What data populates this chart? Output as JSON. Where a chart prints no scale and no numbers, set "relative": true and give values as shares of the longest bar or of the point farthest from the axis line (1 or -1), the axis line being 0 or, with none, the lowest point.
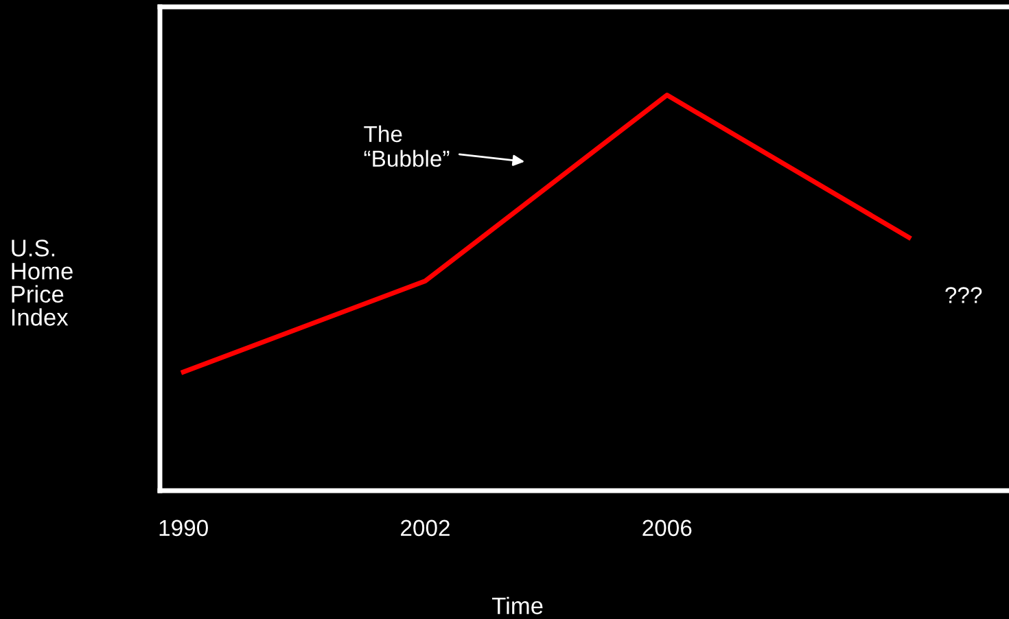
{
  "chart_data": {
    "type": "line",
    "relative": true,
    "xlabel": "Time",
    "ylabel": "U.S.\nHome\nPrice\nIndex",
    "categories": [
      "1990",
      "2002",
      "2006",
      null
    ],
    "series": [
      {
        "color": "#ff0000",
        "values": [
          0.3,
          0.53,
          1,
          0.64
        ]
      }
    ],
    "annotations": [
      "The\n“Bubble”",
      "???"
    ],
    "grid": false,
    "legend": false
  }
}
